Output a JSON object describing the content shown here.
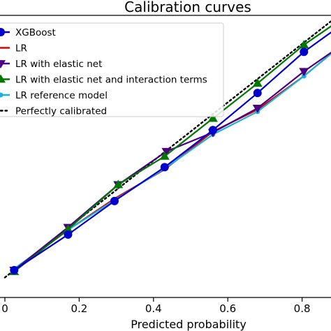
{
  "chart_data": {
    "type": "line",
    "title": "Calibration curves",
    "xlabel": "Predicted probability",
    "ylabel": "",
    "xlim": [
      0,
      0.9
    ],
    "ylim": [
      0,
      0.93
    ],
    "xticks": [
      "0",
      "0.2",
      "0.4",
      "0.6",
      "0.8"
    ],
    "xtick_values": [
      0,
      0.2,
      0.4,
      0.6,
      0.8
    ],
    "grid": false,
    "legend_position": "top-left",
    "series": [
      {
        "name": "XGBoost",
        "color": "#0000cc",
        "marker": "circle",
        "x": [
          0.025,
          0.17,
          0.295,
          0.43,
          0.56,
          0.68,
          0.805,
          0.9
        ],
        "y": [
          0.025,
          0.147,
          0.262,
          0.378,
          0.505,
          0.632,
          0.773,
          0.86
        ]
      },
      {
        "name": "LR",
        "color": "#dd0000",
        "marker": "none",
        "x": [
          0.025,
          0.17,
          0.295,
          0.43,
          0.56,
          0.68,
          0.805,
          0.9
        ],
        "y": [
          0.025,
          0.163,
          0.27,
          0.37,
          0.5,
          0.575,
          0.69,
          0.79
        ]
      },
      {
        "name": "LR with elastic net",
        "color": "#4b0082",
        "marker": "triangle-down",
        "x": [
          0.025,
          0.17,
          0.305,
          0.435,
          0.56,
          0.68,
          0.805,
          0.9
        ],
        "y": [
          0.025,
          0.172,
          0.318,
          0.432,
          0.497,
          0.58,
          0.706,
          0.79
        ]
      },
      {
        "name": "LR with elastic net and interaction terms",
        "color": "#007700",
        "marker": "triangle-up",
        "x": [
          0.025,
          0.17,
          0.305,
          0.43,
          0.56,
          0.68,
          0.805,
          0.9
        ],
        "y": [
          0.02,
          0.165,
          0.318,
          0.415,
          0.545,
          0.665,
          0.797,
          0.88
        ]
      },
      {
        "name": "LR reference model",
        "color": "#1ab2d6",
        "marker": "circle-small",
        "x": [
          0.025,
          0.17,
          0.295,
          0.43,
          0.56,
          0.68,
          0.805,
          0.9
        ],
        "y": [
          0.03,
          0.163,
          0.265,
          0.373,
          0.49,
          0.568,
          0.69,
          0.79
        ]
      },
      {
        "name": "Perfectly calibrated",
        "color": "#000000",
        "marker": "none",
        "dashed": true,
        "x": [
          0,
          0.9
        ],
        "y": [
          0,
          0.9
        ]
      }
    ]
  }
}
